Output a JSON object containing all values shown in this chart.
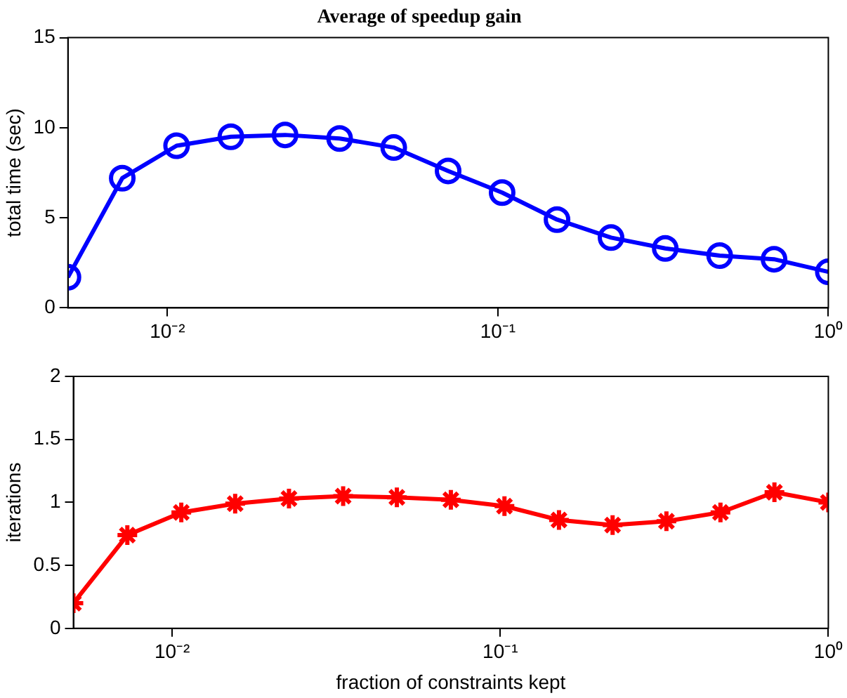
{
  "chart_data": [
    {
      "type": "line",
      "title": "Average of speedup gain",
      "ylabel": "total time (sec)",
      "log": "x",
      "grid": false,
      "legend": false,
      "marker": "circle",
      "line_style": "solid",
      "x": [
        0.005,
        0.0073,
        0.01066,
        0.01556,
        0.0227,
        0.0332,
        0.0484,
        0.0707,
        0.103,
        0.151,
        0.22,
        0.321,
        0.469,
        0.685,
        1
      ],
      "series": [
        {
          "color": "#0000ff",
          "values": [
            1.7,
            7.2,
            9.0,
            9.5,
            9.6,
            9.4,
            8.9,
            7.6,
            6.4,
            4.9,
            3.9,
            3.3,
            2.9,
            2.7,
            2.0
          ]
        }
      ],
      "xlim": [
        0.005,
        1
      ],
      "xticks": [
        {
          "value": 0.01,
          "label": "10⁻²"
        },
        {
          "value": 0.1,
          "label": "10⁻¹"
        },
        {
          "value": 1,
          "label": "10⁰"
        }
      ],
      "ylim": [
        0,
        15
      ],
      "yticks": [
        0,
        5,
        10,
        15
      ]
    },
    {
      "type": "line",
      "xlabel": "fraction of constraints kept",
      "ylabel": "iterations",
      "log": "x",
      "grid": false,
      "legend": false,
      "marker": "cross",
      "line_style": "solid",
      "x": [
        0.005,
        0.0073,
        0.01066,
        0.01556,
        0.0227,
        0.0332,
        0.0484,
        0.0707,
        0.103,
        0.151,
        0.22,
        0.321,
        0.469,
        0.685,
        1
      ],
      "series": [
        {
          "color": "#ff0000",
          "values": [
            0.2,
            0.74,
            0.92,
            0.99,
            1.03,
            1.05,
            1.04,
            1.02,
            0.97,
            0.86,
            0.82,
            0.85,
            0.92,
            1.08,
            1.0
          ]
        }
      ],
      "xlim": [
        0.005,
        1
      ],
      "xticks": [
        {
          "value": 0.01,
          "label": "10⁻²"
        },
        {
          "value": 0.1,
          "label": "10⁻¹"
        },
        {
          "value": 1,
          "label": "10⁰"
        }
      ],
      "ylim": [
        0,
        2
      ],
      "yticks": [
        0,
        0.5,
        1,
        1.5,
        2
      ]
    }
  ]
}
